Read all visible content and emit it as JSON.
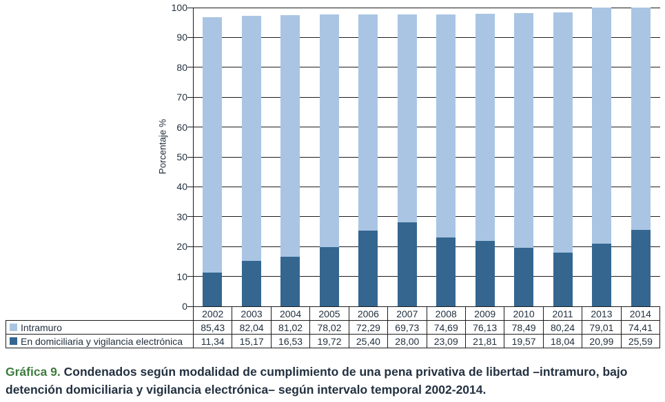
{
  "chart_data": {
    "type": "bar",
    "stacked": true,
    "title": "",
    "ylabel": "Porcentaje %",
    "xlabel": "",
    "ylim": [
      0,
      100
    ],
    "yticks": [
      0,
      10,
      20,
      30,
      40,
      50,
      60,
      70,
      80,
      90,
      100
    ],
    "grid": true,
    "legend_position": "table-left",
    "categories": [
      "2002",
      "2003",
      "2004",
      "2005",
      "2006",
      "2007",
      "2008",
      "2009",
      "2010",
      "2011",
      "2013",
      "2014"
    ],
    "series": [
      {
        "name": "Intramuro",
        "color": "#a9c5e3",
        "values": [
          85.43,
          82.04,
          81.02,
          78.02,
          72.29,
          69.73,
          74.69,
          76.13,
          78.49,
          80.24,
          79.01,
          74.41
        ],
        "labels": [
          "85,43",
          "82,04",
          "81,02",
          "78,02",
          "72,29",
          "69,73",
          "74,69",
          "76,13",
          "78,49",
          "80,24",
          "79,01",
          "74,41"
        ]
      },
      {
        "name": "En domiciliaria y vigilancia electrónica",
        "color": "#346690",
        "values": [
          11.34,
          15.17,
          16.53,
          19.72,
          25.4,
          28.0,
          23.09,
          21.81,
          19.57,
          18.04,
          20.99,
          25.59
        ],
        "labels": [
          "11,34",
          "15,17",
          "16,53",
          "19,72",
          "25,40",
          "28,00",
          "23,09",
          "21,81",
          "19,57",
          "18,04",
          "20,99",
          "25,59"
        ]
      }
    ]
  },
  "caption": {
    "label": "Gráfica 9.",
    "text": "Condenados según modalidad de cumplimiento de una pena privativa de libertad –intramuro, bajo detención domiciliaria y vigilancia electrónica– según intervalo temporal 2002-2014."
  },
  "colors": {
    "grid_line": "#1a1a1a",
    "caption_accent": "#3e7c3e",
    "text": "#22303e"
  }
}
